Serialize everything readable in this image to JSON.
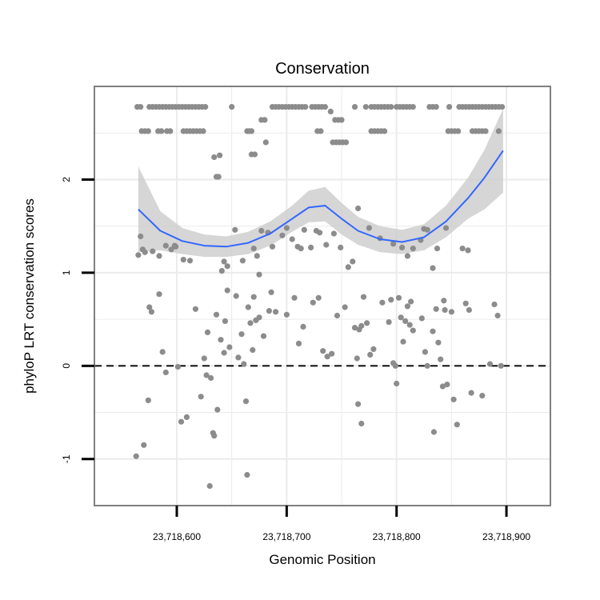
{
  "chart_data": {
    "type": "scatter",
    "title": "Conservation",
    "xlabel": "Genomic Position",
    "ylabel": "phyloP LRT conservation scores",
    "xlim": [
      23718525,
      23718940
    ],
    "ylim": [
      -1.5,
      3.0
    ],
    "x_ticks": [
      {
        "value": 23718600,
        "label": "23,718,600"
      },
      {
        "value": 23718700,
        "label": "23,718,700"
      },
      {
        "value": 23718800,
        "label": "23,718,800"
      },
      {
        "value": 23718900,
        "label": "23,718,900"
      }
    ],
    "y_ticks": [
      {
        "value": -1,
        "label": "-1"
      },
      {
        "value": 0,
        "label": "0"
      },
      {
        "value": 1,
        "label": "1"
      },
      {
        "value": 2,
        "label": "2"
      }
    ],
    "grid": true,
    "reference_line": {
      "y": 0,
      "style": "dashed"
    },
    "colors": {
      "points": "#8c8c8c",
      "smooth_line": "#3366ff",
      "confidence_band": "#cccccc",
      "panel_border": "#7f7f7f",
      "grid": "#ebebeb"
    },
    "points": [
      {
        "x": 23718564,
        "y": 2.78
      },
      {
        "x": 23718567,
        "y": 2.78
      },
      {
        "x": 23718575,
        "y": 2.78
      },
      {
        "x": 23718578,
        "y": 2.78
      },
      {
        "x": 23718581,
        "y": 2.78
      },
      {
        "x": 23718584,
        "y": 2.78
      },
      {
        "x": 23718587,
        "y": 2.78
      },
      {
        "x": 23718590,
        "y": 2.78
      },
      {
        "x": 23718593,
        "y": 2.78
      },
      {
        "x": 23718596,
        "y": 2.78
      },
      {
        "x": 23718599,
        "y": 2.78
      },
      {
        "x": 23718602,
        "y": 2.78
      },
      {
        "x": 23718605,
        "y": 2.78
      },
      {
        "x": 23718608,
        "y": 2.78
      },
      {
        "x": 23718611,
        "y": 2.78
      },
      {
        "x": 23718614,
        "y": 2.78
      },
      {
        "x": 23718617,
        "y": 2.78
      },
      {
        "x": 23718620,
        "y": 2.78
      },
      {
        "x": 23718623,
        "y": 2.78
      },
      {
        "x": 23718626,
        "y": 2.78
      },
      {
        "x": 23718650,
        "y": 2.78
      },
      {
        "x": 23718687,
        "y": 2.78
      },
      {
        "x": 23718690,
        "y": 2.78
      },
      {
        "x": 23718693,
        "y": 2.78
      },
      {
        "x": 23718696,
        "y": 2.78
      },
      {
        "x": 23718699,
        "y": 2.78
      },
      {
        "x": 23718702,
        "y": 2.78
      },
      {
        "x": 23718705,
        "y": 2.78
      },
      {
        "x": 23718708,
        "y": 2.78
      },
      {
        "x": 23718711,
        "y": 2.78
      },
      {
        "x": 23718714,
        "y": 2.78
      },
      {
        "x": 23718717,
        "y": 2.78
      },
      {
        "x": 23718723,
        "y": 2.78
      },
      {
        "x": 23718726,
        "y": 2.78
      },
      {
        "x": 23718729,
        "y": 2.78
      },
      {
        "x": 23718732,
        "y": 2.78
      },
      {
        "x": 23718735,
        "y": 2.78
      },
      {
        "x": 23718762,
        "y": 2.78
      },
      {
        "x": 23718772,
        "y": 2.78
      },
      {
        "x": 23718777,
        "y": 2.78
      },
      {
        "x": 23718780,
        "y": 2.78
      },
      {
        "x": 23718783,
        "y": 2.78
      },
      {
        "x": 23718786,
        "y": 2.78
      },
      {
        "x": 23718789,
        "y": 2.78
      },
      {
        "x": 23718792,
        "y": 2.78
      },
      {
        "x": 23718795,
        "y": 2.78
      },
      {
        "x": 23718800,
        "y": 2.78
      },
      {
        "x": 23718803,
        "y": 2.78
      },
      {
        "x": 23718806,
        "y": 2.78
      },
      {
        "x": 23718809,
        "y": 2.78
      },
      {
        "x": 23718812,
        "y": 2.78
      },
      {
        "x": 23718815,
        "y": 2.78
      },
      {
        "x": 23718830,
        "y": 2.78
      },
      {
        "x": 23718833,
        "y": 2.78
      },
      {
        "x": 23718836,
        "y": 2.78
      },
      {
        "x": 23718848,
        "y": 2.78
      },
      {
        "x": 23718857,
        "y": 2.78
      },
      {
        "x": 23718860,
        "y": 2.78
      },
      {
        "x": 23718863,
        "y": 2.78
      },
      {
        "x": 23718866,
        "y": 2.78
      },
      {
        "x": 23718869,
        "y": 2.78
      },
      {
        "x": 23718872,
        "y": 2.78
      },
      {
        "x": 23718875,
        "y": 2.78
      },
      {
        "x": 23718878,
        "y": 2.78
      },
      {
        "x": 23718881,
        "y": 2.78
      },
      {
        "x": 23718884,
        "y": 2.78
      },
      {
        "x": 23718887,
        "y": 2.78
      },
      {
        "x": 23718890,
        "y": 2.78
      },
      {
        "x": 23718893,
        "y": 2.78
      },
      {
        "x": 23718896,
        "y": 2.78
      },
      {
        "x": 23718568,
        "y": 2.52
      },
      {
        "x": 23718571,
        "y": 2.52
      },
      {
        "x": 23718574,
        "y": 2.52
      },
      {
        "x": 23718583,
        "y": 2.52
      },
      {
        "x": 23718586,
        "y": 2.52
      },
      {
        "x": 23718591,
        "y": 2.52
      },
      {
        "x": 23718594,
        "y": 2.52
      },
      {
        "x": 23718606,
        "y": 2.52
      },
      {
        "x": 23718609,
        "y": 2.52
      },
      {
        "x": 23718612,
        "y": 2.52
      },
      {
        "x": 23718615,
        "y": 2.52
      },
      {
        "x": 23718618,
        "y": 2.52
      },
      {
        "x": 23718621,
        "y": 2.52
      },
      {
        "x": 23718624,
        "y": 2.52
      },
      {
        "x": 23718664,
        "y": 2.52
      },
      {
        "x": 23718666,
        "y": 2.52
      },
      {
        "x": 23718668,
        "y": 2.52
      },
      {
        "x": 23718728,
        "y": 2.52
      },
      {
        "x": 23718731,
        "y": 2.52
      },
      {
        "x": 23718777,
        "y": 2.52
      },
      {
        "x": 23718780,
        "y": 2.52
      },
      {
        "x": 23718783,
        "y": 2.52
      },
      {
        "x": 23718786,
        "y": 2.52
      },
      {
        "x": 23718789,
        "y": 2.52
      },
      {
        "x": 23718847,
        "y": 2.52
      },
      {
        "x": 23718850,
        "y": 2.52
      },
      {
        "x": 23718853,
        "y": 2.52
      },
      {
        "x": 23718856,
        "y": 2.52
      },
      {
        "x": 23718869,
        "y": 2.52
      },
      {
        "x": 23718872,
        "y": 2.52
      },
      {
        "x": 23718875,
        "y": 2.52
      },
      {
        "x": 23718878,
        "y": 2.52
      },
      {
        "x": 23718881,
        "y": 2.52
      },
      {
        "x": 23718893,
        "y": 2.52
      },
      {
        "x": 23718677,
        "y": 2.64
      },
      {
        "x": 23718680,
        "y": 2.64
      },
      {
        "x": 23718744,
        "y": 2.64
      },
      {
        "x": 23718747,
        "y": 2.64
      },
      {
        "x": 23718750,
        "y": 2.64
      },
      {
        "x": 23718740,
        "y": 2.73
      },
      {
        "x": 23718742,
        "y": 2.4
      },
      {
        "x": 23718745,
        "y": 2.4
      },
      {
        "x": 23718748,
        "y": 2.4
      },
      {
        "x": 23718751,
        "y": 2.4
      },
      {
        "x": 23718754,
        "y": 2.4
      },
      {
        "x": 23718681,
        "y": 2.4
      },
      {
        "x": 23718668,
        "y": 2.27
      },
      {
        "x": 23718671,
        "y": 2.27
      },
      {
        "x": 23718634,
        "y": 2.24
      },
      {
        "x": 23718639,
        "y": 2.26
      },
      {
        "x": 23718636,
        "y": 2.03
      },
      {
        "x": 23718638,
        "y": 2.03
      },
      {
        "x": 23718565,
        "y": 1.19
      },
      {
        "x": 23718567,
        "y": 1.39
      },
      {
        "x": 23718569,
        "y": 1.25
      },
      {
        "x": 23718571,
        "y": 1.22
      },
      {
        "x": 23718578,
        "y": 1.23
      },
      {
        "x": 23718584,
        "y": 1.18
      },
      {
        "x": 23718590,
        "y": 1.29
      },
      {
        "x": 23718595,
        "y": 1.25
      },
      {
        "x": 23718598,
        "y": 1.29
      },
      {
        "x": 23718606,
        "y": 1.14
      },
      {
        "x": 23718612,
        "y": 1.13
      },
      {
        "x": 23718599,
        "y": 1.28
      },
      {
        "x": 23718641,
        "y": 1.02
      },
      {
        "x": 23718643,
        "y": 1.12
      },
      {
        "x": 23718646,
        "y": 1.07
      },
      {
        "x": 23718653,
        "y": 1.46
      },
      {
        "x": 23718660,
        "y": 1.13
      },
      {
        "x": 23718670,
        "y": 1.26
      },
      {
        "x": 23718673,
        "y": 1.18
      },
      {
        "x": 23718675,
        "y": 0.98
      },
      {
        "x": 23718677,
        "y": 1.45
      },
      {
        "x": 23718683,
        "y": 1.43
      },
      {
        "x": 23718687,
        "y": 1.28
      },
      {
        "x": 23718696,
        "y": 1.4
      },
      {
        "x": 23718700,
        "y": 1.48
      },
      {
        "x": 23718705,
        "y": 1.36
      },
      {
        "x": 23718710,
        "y": 1.28
      },
      {
        "x": 23718713,
        "y": 1.26
      },
      {
        "x": 23718716,
        "y": 1.46
      },
      {
        "x": 23718722,
        "y": 1.27
      },
      {
        "x": 23718727,
        "y": 1.45
      },
      {
        "x": 23718730,
        "y": 1.43
      },
      {
        "x": 23718736,
        "y": 1.3
      },
      {
        "x": 23718743,
        "y": 1.42
      },
      {
        "x": 23718749,
        "y": 1.27
      },
      {
        "x": 23718756,
        "y": 1.06
      },
      {
        "x": 23718760,
        "y": 1.12
      },
      {
        "x": 23718765,
        "y": 1.69
      },
      {
        "x": 23718775,
        "y": 1.48
      },
      {
        "x": 23718785,
        "y": 1.37
      },
      {
        "x": 23718797,
        "y": 1.31
      },
      {
        "x": 23718805,
        "y": 1.27
      },
      {
        "x": 23718810,
        "y": 1.18
      },
      {
        "x": 23718815,
        "y": 1.26
      },
      {
        "x": 23718822,
        "y": 1.35
      },
      {
        "x": 23718825,
        "y": 1.47
      },
      {
        "x": 23718828,
        "y": 1.46
      },
      {
        "x": 23718833,
        "y": 1.05
      },
      {
        "x": 23718837,
        "y": 1.26
      },
      {
        "x": 23718845,
        "y": 1.48
      },
      {
        "x": 23718860,
        "y": 1.26
      },
      {
        "x": 23718865,
        "y": 1.24
      },
      {
        "x": 23718575,
        "y": 0.63
      },
      {
        "x": 23718577,
        "y": 0.58
      },
      {
        "x": 23718584,
        "y": 0.77
      },
      {
        "x": 23718587,
        "y": 0.15
      },
      {
        "x": 23718590,
        "y": -0.07
      },
      {
        "x": 23718601,
        "y": -0.01
      },
      {
        "x": 23718604,
        "y": -0.6
      },
      {
        "x": 23718609,
        "y": -0.55
      },
      {
        "x": 23718617,
        "y": 0.61
      },
      {
        "x": 23718622,
        "y": -0.33
      },
      {
        "x": 23718625,
        "y": 0.08
      },
      {
        "x": 23718627,
        "y": -0.1
      },
      {
        "x": 23718628,
        "y": 0.36
      },
      {
        "x": 23718631,
        "y": -0.13
      },
      {
        "x": 23718633,
        "y": -0.72
      },
      {
        "x": 23718634,
        "y": -0.75
      },
      {
        "x": 23718636,
        "y": 0.55
      },
      {
        "x": 23718637,
        "y": -0.47
      },
      {
        "x": 23718640,
        "y": 0.28
      },
      {
        "x": 23718643,
        "y": 0.14
      },
      {
        "x": 23718644,
        "y": 0.48
      },
      {
        "x": 23718646,
        "y": 0.81
      },
      {
        "x": 23718648,
        "y": 0.2
      },
      {
        "x": 23718654,
        "y": 0.75
      },
      {
        "x": 23718656,
        "y": 0.09
      },
      {
        "x": 23718659,
        "y": 0.34
      },
      {
        "x": 23718661,
        "y": 0.02
      },
      {
        "x": 23718663,
        "y": -0.38
      },
      {
        "x": 23718665,
        "y": 0.63
      },
      {
        "x": 23718667,
        "y": 0.46
      },
      {
        "x": 23718669,
        "y": 0.17
      },
      {
        "x": 23718670,
        "y": 0.74
      },
      {
        "x": 23718672,
        "y": 0.49
      },
      {
        "x": 23718675,
        "y": 0.52
      },
      {
        "x": 23718679,
        "y": 0.32
      },
      {
        "x": 23718684,
        "y": 0.59
      },
      {
        "x": 23718686,
        "y": 0.79
      },
      {
        "x": 23718690,
        "y": 0.58
      },
      {
        "x": 23718700,
        "y": 0.55
      },
      {
        "x": 23718707,
        "y": 0.73
      },
      {
        "x": 23718711,
        "y": 0.24
      },
      {
        "x": 23718715,
        "y": 0.42
      },
      {
        "x": 23718724,
        "y": 0.68
      },
      {
        "x": 23718729,
        "y": 0.73
      },
      {
        "x": 23718733,
        "y": 0.16
      },
      {
        "x": 23718737,
        "y": 0.1
      },
      {
        "x": 23718741,
        "y": 0.13
      },
      {
        "x": 23718746,
        "y": 0.54
      },
      {
        "x": 23718753,
        "y": 0.63
      },
      {
        "x": 23718762,
        "y": 0.41
      },
      {
        "x": 23718764,
        "y": 0.08
      },
      {
        "x": 23718766,
        "y": 0.39
      },
      {
        "x": 23718768,
        "y": 0.43
      },
      {
        "x": 23718765,
        "y": -0.41
      },
      {
        "x": 23718768,
        "y": -0.62
      },
      {
        "x": 23718770,
        "y": 0.74
      },
      {
        "x": 23718773,
        "y": 0.46
      },
      {
        "x": 23718776,
        "y": 0.12
      },
      {
        "x": 23718779,
        "y": 0.18
      },
      {
        "x": 23718787,
        "y": 0.68
      },
      {
        "x": 23718793,
        "y": 0.47
      },
      {
        "x": 23718795,
        "y": 0.71
      },
      {
        "x": 23718797,
        "y": 0.03
      },
      {
        "x": 23718799,
        "y": 0.0
      },
      {
        "x": 23718800,
        "y": -0.19
      },
      {
        "x": 23718802,
        "y": 0.73
      },
      {
        "x": 23718804,
        "y": 0.52
      },
      {
        "x": 23718806,
        "y": 0.26
      },
      {
        "x": 23718808,
        "y": 0.48
      },
      {
        "x": 23718810,
        "y": 0.64
      },
      {
        "x": 23718812,
        "y": 0.44
      },
      {
        "x": 23718813,
        "y": 0.69
      },
      {
        "x": 23718815,
        "y": 0.38
      },
      {
        "x": 23718823,
        "y": 0.51
      },
      {
        "x": 23718826,
        "y": 0.15
      },
      {
        "x": 23718828,
        "y": 0.0
      },
      {
        "x": 23718833,
        "y": 0.37
      },
      {
        "x": 23718834,
        "y": -0.71
      },
      {
        "x": 23718836,
        "y": 0.61
      },
      {
        "x": 23718838,
        "y": 0.25
      },
      {
        "x": 23718840,
        "y": 0.07
      },
      {
        "x": 23718842,
        "y": -0.22
      },
      {
        "x": 23718843,
        "y": 0.7
      },
      {
        "x": 23718844,
        "y": 0.6
      },
      {
        "x": 23718846,
        "y": -0.2
      },
      {
        "x": 23718850,
        "y": 0.58
      },
      {
        "x": 23718852,
        "y": -0.36
      },
      {
        "x": 23718855,
        "y": -0.63
      },
      {
        "x": 23718863,
        "y": 0.67
      },
      {
        "x": 23718866,
        "y": 0.6
      },
      {
        "x": 23718868,
        "y": -0.29
      },
      {
        "x": 23718878,
        "y": -0.32
      },
      {
        "x": 23718885,
        "y": 0.02
      },
      {
        "x": 23718889,
        "y": 0.66
      },
      {
        "x": 23718892,
        "y": 0.54
      },
      {
        "x": 23718895,
        "y": 0.0
      },
      {
        "x": 23718563,
        "y": -0.97
      },
      {
        "x": 23718570,
        "y": -0.85
      },
      {
        "x": 23718574,
        "y": -0.37
      },
      {
        "x": 23718630,
        "y": -1.29
      },
      {
        "x": 23718664,
        "y": -1.17
      }
    ],
    "smooth": {
      "x": [
        23718565,
        23718585,
        23718605,
        23718625,
        23718645,
        23718665,
        23718685,
        23718705,
        23718720,
        23718735,
        23718750,
        23718765,
        23718785,
        23718805,
        23718825,
        23718845,
        23718865,
        23718880,
        23718897
      ],
      "y": [
        1.68,
        1.45,
        1.34,
        1.29,
        1.28,
        1.32,
        1.42,
        1.58,
        1.7,
        1.72,
        1.58,
        1.45,
        1.36,
        1.33,
        1.38,
        1.55,
        1.8,
        2.02,
        2.31
      ],
      "lower": [
        1.22,
        1.24,
        1.2,
        1.17,
        1.17,
        1.2,
        1.29,
        1.44,
        1.54,
        1.55,
        1.41,
        1.3,
        1.22,
        1.2,
        1.24,
        1.38,
        1.58,
        1.68,
        1.86
      ],
      "upper": [
        2.14,
        1.66,
        1.48,
        1.41,
        1.39,
        1.44,
        1.55,
        1.72,
        1.88,
        1.92,
        1.75,
        1.6,
        1.5,
        1.46,
        1.52,
        1.72,
        2.02,
        2.32,
        2.76
      ]
    }
  }
}
